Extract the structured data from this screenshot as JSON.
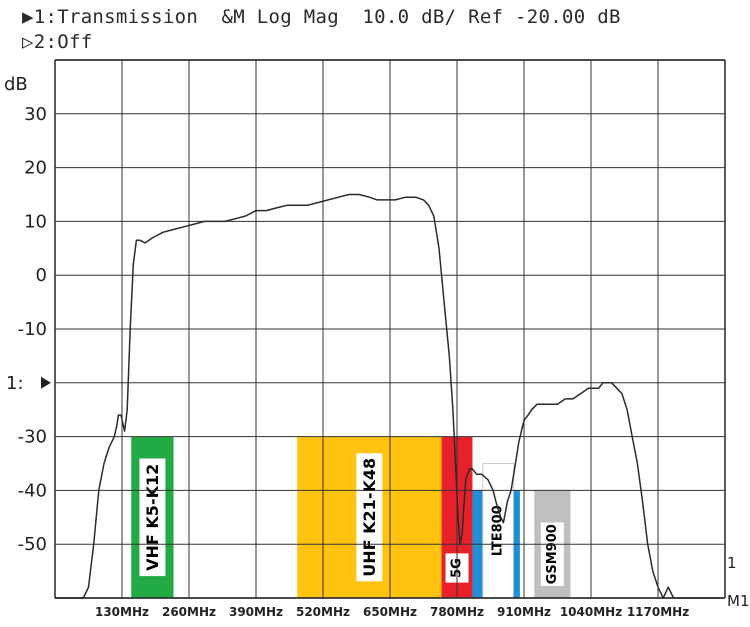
{
  "header": {
    "line1": "▶1:Transmission  &M Log Mag  10.0 dB/ Ref -20.00 dB",
    "line2": "▷2:Off"
  },
  "chart_data": {
    "type": "line",
    "title": "",
    "ylabel": "dB",
    "xlabel": "",
    "ylim": [
      -60,
      40
    ],
    "xlim": [
      0,
      1300
    ],
    "yticks": [
      30,
      20,
      10,
      0,
      -10,
      -20,
      -30,
      -40,
      -50
    ],
    "ytick_labels": [
      "30",
      "20",
      "10",
      "0",
      "-10",
      "1:",
      "-30",
      "-40",
      "-50"
    ],
    "ref_marker": {
      "label": "1:",
      "y": -20
    },
    "xticks": [
      130,
      260,
      390,
      520,
      650,
      780,
      910,
      1040,
      1170
    ],
    "xtick_labels": [
      "130MHz",
      "260MHz",
      "390MHz",
      "520MHz",
      "650MHz",
      "780MHz",
      "910MHz",
      "1040MHz",
      "1170MHz"
    ],
    "grid": true,
    "right_markers": [
      "1",
      "M1"
    ],
    "series": [
      {
        "x": [
          0,
          5,
          15,
          25,
          35,
          45,
          55,
          65,
          75,
          85,
          95,
          105,
          115,
          120,
          123,
          128,
          135,
          140,
          146,
          152,
          158,
          165,
          175,
          190,
          210,
          230,
          250,
          270,
          290,
          310,
          330,
          350,
          370,
          390,
          410,
          430,
          450,
          470,
          490,
          510,
          530,
          550,
          570,
          590,
          610,
          625,
          640,
          660,
          680,
          700,
          715,
          725,
          735,
          745,
          755,
          765,
          772,
          777,
          782,
          786,
          790,
          794,
          797,
          800,
          805,
          810,
          818,
          828,
          840,
          850,
          858,
          865,
          870,
          878,
          885,
          890,
          895,
          900,
          905,
          910,
          918,
          925,
          935,
          945,
          960,
          975,
          990,
          1005,
          1020,
          1035,
          1045,
          1055,
          1063,
          1070,
          1080,
          1090,
          1100,
          1110,
          1120,
          1130,
          1140,
          1150,
          1160,
          1170,
          1180,
          1190,
          1200,
          1210,
          1220,
          1230,
          1240,
          1250,
          1260,
          1270,
          1280,
          1290
        ],
        "y": [
          -60,
          -60,
          -60,
          -60,
          -60,
          -60,
          -60,
          -58,
          -50,
          -40,
          -35,
          -32,
          -30,
          -28,
          -26,
          -26,
          -29,
          -25,
          -10,
          2,
          6.5,
          6.5,
          6,
          7,
          8,
          8.5,
          9,
          9.5,
          10,
          10,
          10,
          10.5,
          11,
          12,
          12,
          12.5,
          13,
          13,
          13,
          13.5,
          14,
          14.5,
          15,
          15,
          14.5,
          14,
          14,
          14,
          14.5,
          14.5,
          14,
          13,
          11,
          5,
          -5,
          -15,
          -25,
          -35,
          -45,
          -50,
          -48,
          -42,
          -38,
          -37,
          -36,
          -36,
          -37,
          -37,
          -38,
          -40,
          -43,
          -45,
          -46,
          -42,
          -40,
          -37,
          -34,
          -31,
          -29,
          -27,
          -26,
          -25,
          -24,
          -24,
          -24,
          -24,
          -23,
          -23,
          -22,
          -21,
          -21,
          -21,
          -20,
          -20,
          -20,
          -21,
          -22,
          -25,
          -30,
          -35,
          -42,
          -50,
          -55,
          -58,
          -60,
          -58,
          -60,
          -60,
          -60,
          -60,
          -60,
          -60,
          -60,
          -60,
          -60,
          -60
        ]
      }
    ],
    "bands": [
      {
        "label": "VHF K5-K12",
        "x0": 148,
        "x1": 230,
        "y_top": -30,
        "color": "#22aa44",
        "label_bg": "#ffffff",
        "label_color": "#000000"
      },
      {
        "label": "UHF K21-K48",
        "x0": 470,
        "x1": 750,
        "y_top": -30,
        "color": "#ffc20e",
        "label_bg": "#ffffff",
        "label_color": "#000000"
      },
      {
        "label": "5G",
        "x0": 750,
        "x1": 810,
        "y_top": -30,
        "color": "#e8202a",
        "label_bg": "#ffffff",
        "label_color": "#000000"
      },
      {
        "label": "",
        "x0": 810,
        "x1": 830,
        "y_top": -40,
        "color": "#1e8fd8"
      },
      {
        "label": "LTE800",
        "x0": 830,
        "x1": 890,
        "y_top": -35,
        "color": "#ffffff",
        "label_bg": "#ffffff",
        "label_color": "#000000"
      },
      {
        "label": "",
        "x0": 890,
        "x1": 902,
        "y_top": -40,
        "color": "#1e8fd8"
      },
      {
        "label": "GSM900",
        "x0": 930,
        "x1": 1000,
        "y_top": -40,
        "color": "#bfbfbf",
        "label_bg": "#ffffff",
        "label_color": "#000000"
      }
    ]
  }
}
